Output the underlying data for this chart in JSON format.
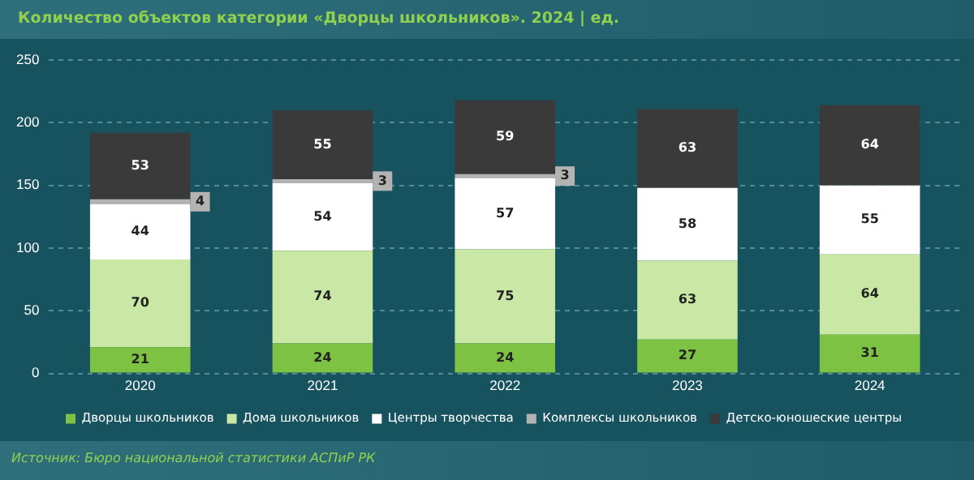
{
  "chart_data": {
    "type": "bar",
    "stacked": true,
    "title": "Количество объектов категории «Дворцы школьников». 2024 | ед.",
    "categories": [
      "2020",
      "2021",
      "2022",
      "2023",
      "2024"
    ],
    "series": [
      {
        "name": "Дворцы школьников",
        "color": "#7dc242",
        "values": [
          21,
          24,
          24,
          27,
          31
        ]
      },
      {
        "name": "Дома школьников",
        "color": "#c9e8a6",
        "values": [
          70,
          74,
          75,
          63,
          64
        ]
      },
      {
        "name": "Центры творчества",
        "color": "#ffffff",
        "values": [
          44,
          54,
          57,
          58,
          55
        ]
      },
      {
        "name": "Комплексы школьников",
        "color": "#b3b3b3",
        "values": [
          4,
          3,
          3,
          null,
          null
        ]
      },
      {
        "name": "Детско-юношеские центры",
        "color": "#3a3a3a",
        "values": [
          53,
          55,
          59,
          63,
          64
        ]
      }
    ],
    "ylim": [
      0,
      250
    ],
    "yticks": [
      0,
      50,
      100,
      150,
      200,
      250
    ],
    "grid": "y",
    "legend": "bottom",
    "data_labels": true,
    "annotations": [
      "Источник: Бюро национальной статистики АСПиР РК"
    ]
  }
}
